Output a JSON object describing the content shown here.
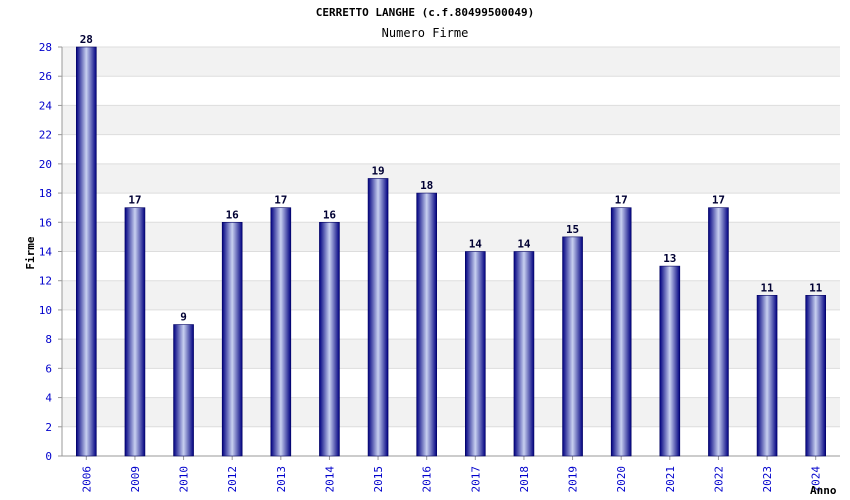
{
  "chart_data": {
    "type": "bar",
    "title": "CERRETTO LANGHE (c.f.80499500049)",
    "subtitle": "Numero Firme",
    "xlabel": "Anno",
    "ylabel": "Firme",
    "categories": [
      "2006",
      "2009",
      "2010",
      "2012",
      "2013",
      "2014",
      "2015",
      "2016",
      "2017",
      "2018",
      "2019",
      "2020",
      "2021",
      "2022",
      "2023",
      "2024"
    ],
    "values": [
      28,
      17,
      9,
      16,
      17,
      16,
      19,
      18,
      14,
      14,
      15,
      17,
      13,
      17,
      11,
      11
    ],
    "ylim": [
      0,
      28
    ],
    "yticks": [
      0,
      2,
      4,
      6,
      8,
      10,
      12,
      14,
      16,
      18,
      20,
      22,
      24,
      26,
      28
    ],
    "grid": true,
    "colors": {
      "bar_dark": "#000080",
      "bar_light": "#c8d0f0",
      "band": "#f2f2f2",
      "tick_text": "#0000cc",
      "value_text": "#000033"
    }
  }
}
